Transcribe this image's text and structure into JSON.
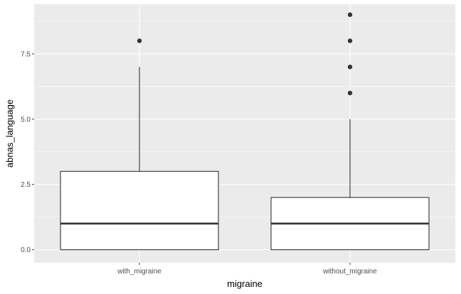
{
  "chart_data": {
    "type": "boxplot",
    "title": "",
    "xlabel": "migraine",
    "ylabel": "abnas_language",
    "ylim": [
      -0.5,
      9.4
    ],
    "y_ticks": [
      0.0,
      2.5,
      5.0,
      7.5
    ],
    "y_tick_labels": [
      "0.0",
      "2.5",
      "5.0",
      "7.5"
    ],
    "categories": [
      "with_migraine",
      "without_migraine"
    ],
    "boxes": [
      {
        "category": "with_migraine",
        "q1": 0,
        "median": 1,
        "q3": 3,
        "whisker_low": 0,
        "whisker_high": 7,
        "outliers": [
          8
        ]
      },
      {
        "category": "without_migraine",
        "q1": 0,
        "median": 1,
        "q3": 2,
        "whisker_low": 0,
        "whisker_high": 5,
        "outliers": [
          6,
          7,
          8,
          9
        ]
      }
    ],
    "grid": true,
    "colors": {
      "panel": "#ebebeb",
      "grid": "#ffffff",
      "box_fill": "#ffffff",
      "line": "#333333"
    }
  }
}
